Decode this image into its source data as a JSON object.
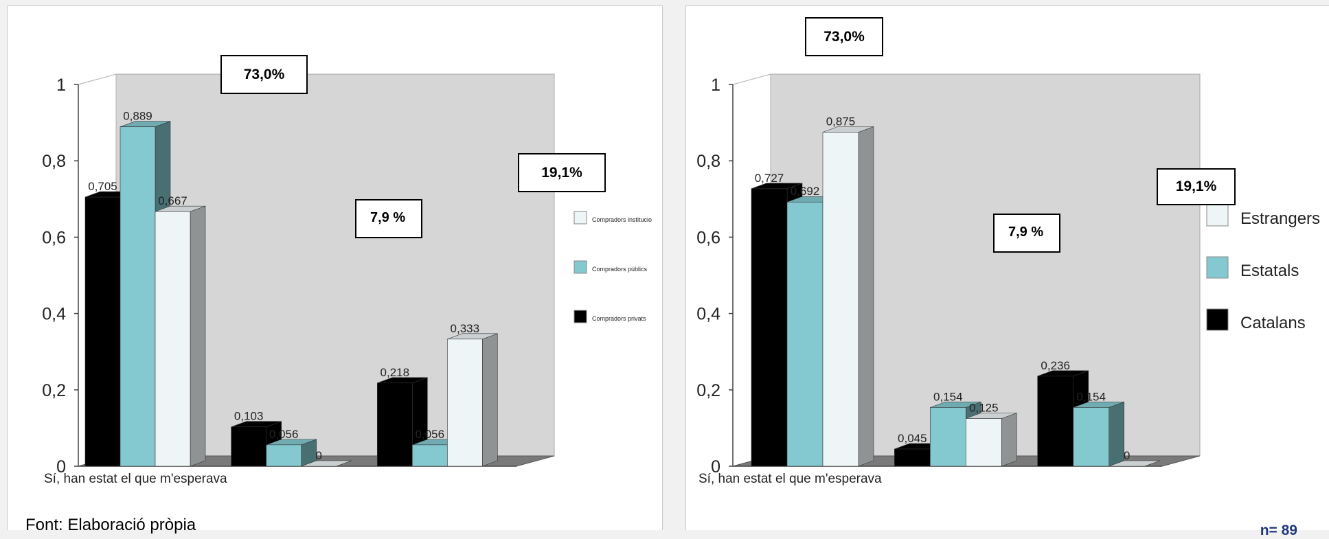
{
  "colors": {
    "black": "#000000",
    "teal": "#84c9d0",
    "white": "#eef5f6",
    "wall": "#d6d6d6",
    "floor": "#7a7a7a"
  },
  "chart_data": [
    {
      "type": "bar",
      "categories": [
        "Sí, han estat el que m'esperava",
        "",
        ""
      ],
      "ylim": [
        0,
        1
      ],
      "yticks": [
        "0",
        "0,2",
        "0,4",
        "0,6",
        "0,8",
        "1"
      ],
      "legend_position": "right",
      "series": [
        {
          "name": "Compradors privats",
          "color": "black",
          "values": [
            0.705,
            0.103,
            0.218
          ],
          "labels": [
            "0,705",
            "0,103",
            "0,218"
          ]
        },
        {
          "name": "Compradors públics",
          "color": "teal",
          "values": [
            0.889,
            0.056,
            0.056
          ],
          "labels": [
            "0,889",
            "0,056",
            "0,056"
          ]
        },
        {
          "name": "Compradors institucio",
          "color": "white",
          "values": [
            0.667,
            0,
            0.333
          ],
          "labels": [
            "0,667",
            "0",
            "0,333"
          ]
        }
      ]
    },
    {
      "type": "bar",
      "categories": [
        "Sí, han estat el que m'esperava",
        "",
        ""
      ],
      "ylim": [
        0,
        1
      ],
      "yticks": [
        "0",
        "0,2",
        "0,4",
        "0,6",
        "0,8",
        "1"
      ],
      "legend_position": "right",
      "series": [
        {
          "name": "Catalans",
          "color": "black",
          "values": [
            0.727,
            0.045,
            0.236
          ],
          "labels": [
            "0,727",
            "0,045",
            "0,236"
          ]
        },
        {
          "name": "Estatals",
          "color": "teal",
          "values": [
            0.692,
            0.154,
            0.154
          ],
          "labels": [
            "0,692",
            "0,154",
            "0,154"
          ]
        },
        {
          "name": "Estrangers",
          "color": "white",
          "values": [
            0.875,
            0.125,
            0
          ],
          "labels": [
            "0,875",
            "0,125",
            "0"
          ]
        }
      ]
    }
  ],
  "annotations": {
    "left": {
      "pct_a": "73,0%",
      "pct_b": "19,1%",
      "pct_c": "7,9 %"
    },
    "right": {
      "pct_a": "73,0%",
      "pct_b": "19,1%",
      "pct_c": "7,9 %"
    }
  },
  "footer": {
    "source": "Font: Elaboració pròpia",
    "n": "n= 89"
  }
}
